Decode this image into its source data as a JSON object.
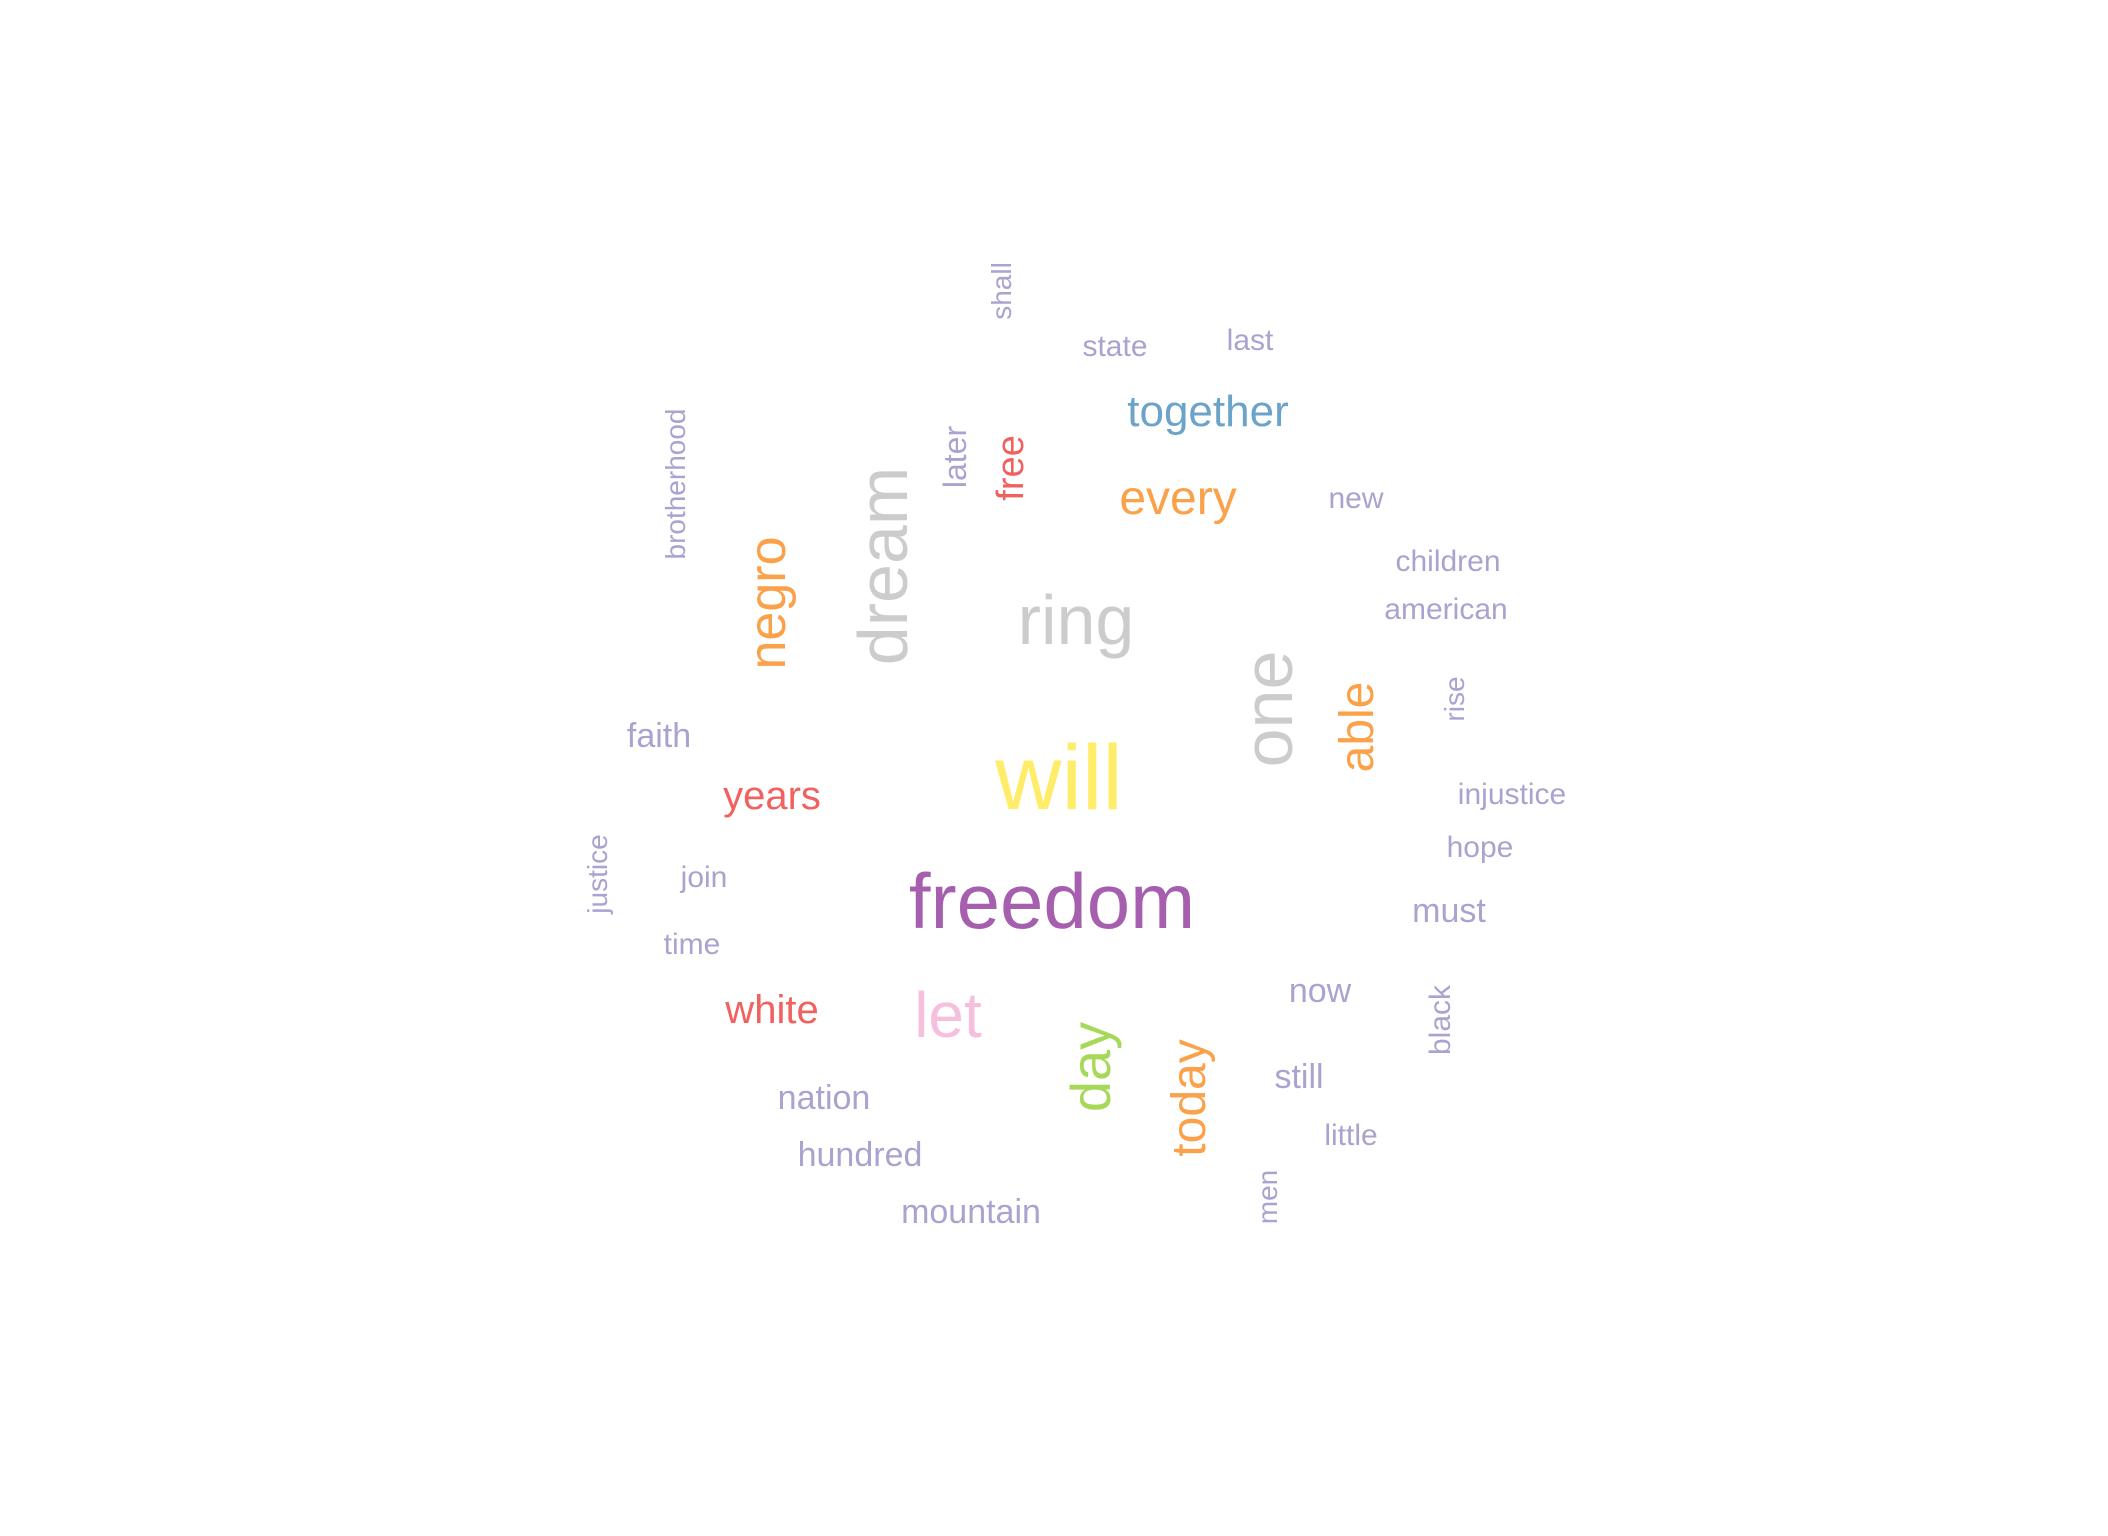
{
  "word_cloud": {
    "palette": {
      "lavender": "#a9a3cf",
      "gray": "#cccccc",
      "yellow": "#ffed6a",
      "purple": "#a65fae",
      "pink": "#f5bfdd",
      "orange": "#fba14a",
      "red": "#f0615f",
      "blue": "#6ca3c9",
      "green": "#a6d95a"
    },
    "words": [
      {
        "text": "freedom",
        "color": "#a65fae",
        "vertical": false
      },
      {
        "text": "will",
        "color": "#ffed6a",
        "vertical": false
      },
      {
        "text": "ring",
        "color": "#cccccc",
        "vertical": false
      },
      {
        "text": "dream",
        "color": "#cccccc",
        "vertical": true
      },
      {
        "text": "one",
        "color": "#cccccc",
        "vertical": true
      },
      {
        "text": "let",
        "color": "#f5bfdd",
        "vertical": false
      },
      {
        "text": "negro",
        "color": "#fba14a",
        "vertical": true
      },
      {
        "text": "every",
        "color": "#fba14a",
        "vertical": false
      },
      {
        "text": "able",
        "color": "#fba14a",
        "vertical": true
      },
      {
        "text": "today",
        "color": "#fba14a",
        "vertical": true
      },
      {
        "text": "day",
        "color": "#a6d95a",
        "vertical": true
      },
      {
        "text": "together",
        "color": "#6ca3c9",
        "vertical": false
      },
      {
        "text": "years",
        "color": "#f0615f",
        "vertical": false
      },
      {
        "text": "white",
        "color": "#f0615f",
        "vertical": false
      },
      {
        "text": "free",
        "color": "#f0615f",
        "vertical": true
      },
      {
        "text": "shall",
        "color": "#a9a3cf",
        "vertical": true
      },
      {
        "text": "state",
        "color": "#a9a3cf",
        "vertical": false
      },
      {
        "text": "last",
        "color": "#a9a3cf",
        "vertical": false
      },
      {
        "text": "later",
        "color": "#a9a3cf",
        "vertical": true
      },
      {
        "text": "brotherhood",
        "color": "#a9a3cf",
        "vertical": true
      },
      {
        "text": "new",
        "color": "#a9a3cf",
        "vertical": false
      },
      {
        "text": "children",
        "color": "#a9a3cf",
        "vertical": false
      },
      {
        "text": "american",
        "color": "#a9a3cf",
        "vertical": false
      },
      {
        "text": "rise",
        "color": "#a9a3cf",
        "vertical": true
      },
      {
        "text": "faith",
        "color": "#a9a3cf",
        "vertical": false
      },
      {
        "text": "injustice",
        "color": "#a9a3cf",
        "vertical": false
      },
      {
        "text": "hope",
        "color": "#a9a3cf",
        "vertical": false
      },
      {
        "text": "justice",
        "color": "#a9a3cf",
        "vertical": true
      },
      {
        "text": "join",
        "color": "#a9a3cf",
        "vertical": false
      },
      {
        "text": "must",
        "color": "#a9a3cf",
        "vertical": false
      },
      {
        "text": "time",
        "color": "#a9a3cf",
        "vertical": false
      },
      {
        "text": "now",
        "color": "#a9a3cf",
        "vertical": false
      },
      {
        "text": "black",
        "color": "#a9a3cf",
        "vertical": true
      },
      {
        "text": "still",
        "color": "#a9a3cf",
        "vertical": false
      },
      {
        "text": "nation",
        "color": "#a9a3cf",
        "vertical": false
      },
      {
        "text": "little",
        "color": "#a9a3cf",
        "vertical": false
      },
      {
        "text": "hundred",
        "color": "#a9a3cf",
        "vertical": false
      },
      {
        "text": "mountain",
        "color": "#a9a3cf",
        "vertical": false
      },
      {
        "text": "men",
        "color": "#a9a3cf",
        "vertical": true
      }
    ]
  }
}
